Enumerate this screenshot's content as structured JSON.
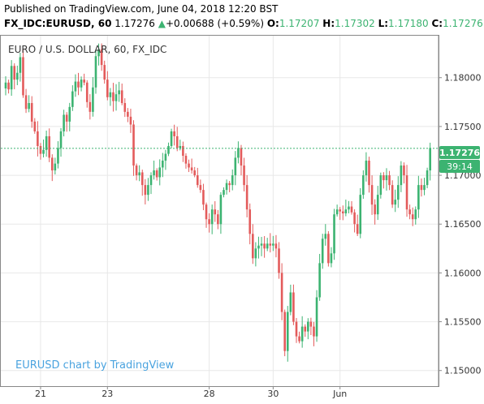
{
  "header": {
    "published": "Published on TradingView.com, June 04, 2018 12:20 BST",
    "symbol": "FX_IDC:EURUSD, 60",
    "last": "1.17276",
    "change": "+0.00688 (+0.59%)",
    "o_label": "O:",
    "o_value": "1.17207",
    "h_label": "H:",
    "h_value": "1.17302",
    "l_label": "L:",
    "l_value": "1.17180",
    "c_label": "C:",
    "c_value": "1.17276",
    "change_arrow": "▲"
  },
  "chart_title": "EURO / U.S. DOLLAR, 60, FX_IDC",
  "watermark": "EURUSD chart by TradingView",
  "price_badge": "1.17276",
  "countdown_badge": "39:14",
  "colors": {
    "up": "#3cb371",
    "down": "#e35b5b",
    "grid": "#e8e8e8",
    "last_line": "#3cb371",
    "watermark": "#4aa3df"
  },
  "chart_data": {
    "type": "candlestick",
    "title": "EURO / U.S. DOLLAR, 60, FX_IDC",
    "y_ticks": [
      "1.18000",
      "1.17500",
      "1.17000",
      "1.16500",
      "1.16000",
      "1.15500",
      "1.15000"
    ],
    "y_tick_values": [
      1.18,
      1.175,
      1.17,
      1.165,
      1.16,
      1.155,
      1.15
    ],
    "ylim": [
      1.1484,
      1.1843
    ],
    "x_ticks": [
      "21",
      "23",
      "28",
      "30",
      "Jun"
    ],
    "x_tick_index": [
      12,
      35,
      70,
      92,
      115
    ],
    "last_price": 1.17276,
    "grid": true,
    "closes": [
      1.1795,
      1.1788,
      1.1812,
      1.1798,
      1.1805,
      1.1821,
      1.1782,
      1.1768,
      1.1774,
      1.1755,
      1.1745,
      1.173,
      1.1722,
      1.1726,
      1.174,
      1.1718,
      1.1705,
      1.1712,
      1.1728,
      1.1745,
      1.1762,
      1.1755,
      1.177,
      1.1786,
      1.1796,
      1.179,
      1.1798,
      1.1795,
      1.1775,
      1.1765,
      1.179,
      1.1822,
      1.1829,
      1.1813,
      1.1798,
      1.178,
      1.1785,
      1.1776,
      1.1783,
      1.1787,
      1.1774,
      1.1765,
      1.176,
      1.1752,
      1.171,
      1.17,
      1.1703,
      1.169,
      1.168,
      1.169,
      1.17,
      1.1705,
      1.1698,
      1.1708,
      1.1715,
      1.1722,
      1.173,
      1.1745,
      1.174,
      1.1728,
      1.173,
      1.172,
      1.1712,
      1.1708,
      1.1705,
      1.17,
      1.169,
      1.1685,
      1.167,
      1.1655,
      1.165,
      1.1665,
      1.166,
      1.165,
      1.168,
      1.1685,
      1.1692,
      1.169,
      1.17,
      1.1718,
      1.1728,
      1.171,
      1.169,
      1.1665,
      1.164,
      1.1615,
      1.1625,
      1.1628,
      1.163,
      1.1625,
      1.163,
      1.1628,
      1.163,
      1.1625,
      1.16,
      1.156,
      1.152,
      1.156,
      1.158,
      1.155,
      1.1535,
      1.153,
      1.1545,
      1.154,
      1.155,
      1.1545,
      1.1535,
      1.1575,
      1.161,
      1.1635,
      1.164,
      1.161,
      1.162,
      1.166,
      1.1665,
      1.1663,
      1.1661,
      1.1665,
      1.1668,
      1.1662,
      1.165,
      1.164,
      1.168,
      1.17,
      1.1715,
      1.169,
      1.167,
      1.166,
      1.168,
      1.17,
      1.1695,
      1.17,
      1.169,
      1.167,
      1.1675,
      1.169,
      1.171,
      1.17,
      1.1665,
      1.166,
      1.1655,
      1.1665,
      1.169,
      1.1685,
      1.169,
      1.1705,
      1.1728
    ]
  }
}
